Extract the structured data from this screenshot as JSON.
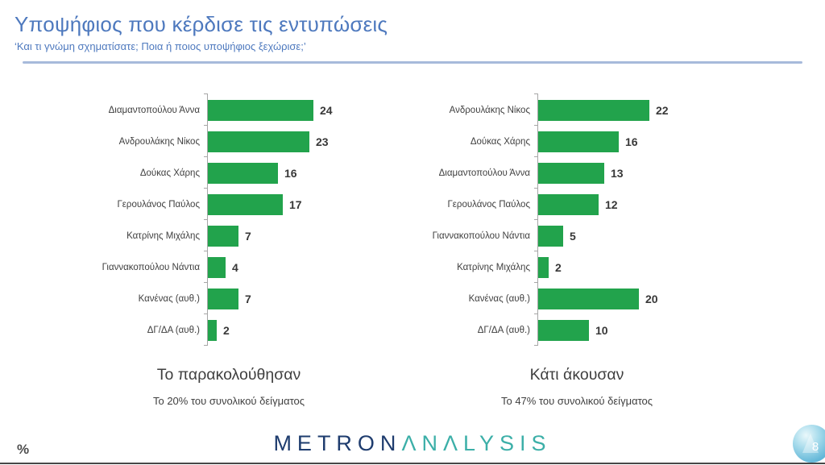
{
  "header": {
    "title": "Υποψήφιος που κέρδισε τις εντυπώσεις",
    "subtitle": "‘Και τι γνώμη σχηματίσατε; Ποια ή ποιος υποψήφιος ξεχώρισε;’"
  },
  "chart_data": [
    {
      "type": "bar",
      "orientation": "horizontal",
      "title": "Το παρακολούθησαν",
      "subtitle": "Το 20% του συνολικού δείγματος",
      "categories": [
        "Διαμαντοπούλου Άννα",
        "Ανδρουλάκης Νίκος",
        "Δούκας Χάρης",
        "Γερουλάνος Παύλος",
        "Κατρίνης Μιχάλης",
        "Γιαννακοπούλου Νάντια",
        "Κανένας (αυθ.)",
        "ΔΓ/ΔΑ (αυθ.)"
      ],
      "values": [
        24,
        23,
        16,
        17,
        7,
        4,
        7,
        2
      ],
      "unit": "%",
      "bar_color": "#22A34C",
      "value_labels": true,
      "grid": false,
      "legend": false,
      "xlim": [
        0,
        25
      ]
    },
    {
      "type": "bar",
      "orientation": "horizontal",
      "title": "Κάτι άκουσαν",
      "subtitle": "Το 47% του συνολικού δείγματος",
      "categories": [
        "Ανδρουλάκης Νίκος",
        "Δούκας Χάρης",
        "Διαμαντοπούλου Άννα",
        "Γερουλάνος Παύλος",
        "Γιαννακοπούλου Νάντια",
        "Κατρίνης Μιχάλης",
        "Κανένας (αυθ.)",
        "ΔΓ/ΔΑ (αυθ.)"
      ],
      "values": [
        22,
        16,
        13,
        12,
        5,
        2,
        20,
        10
      ],
      "unit": "%",
      "bar_color": "#22A34C",
      "value_labels": true,
      "grid": false,
      "legend": false,
      "xlim": [
        0,
        23
      ]
    }
  ],
  "footer": {
    "unit_note": "%",
    "logo_part1": "METRON",
    "logo_part2": "ΛNΛLYSIS",
    "page_number": "8"
  },
  "colors": {
    "title_blue": "#4E79BE",
    "divider_blue": "#A7BADB",
    "bar_green": "#22A34C",
    "axis_gray": "#A6A6A6",
    "logo_navy": "#1E3C6E",
    "logo_teal": "#3CAFA8"
  }
}
